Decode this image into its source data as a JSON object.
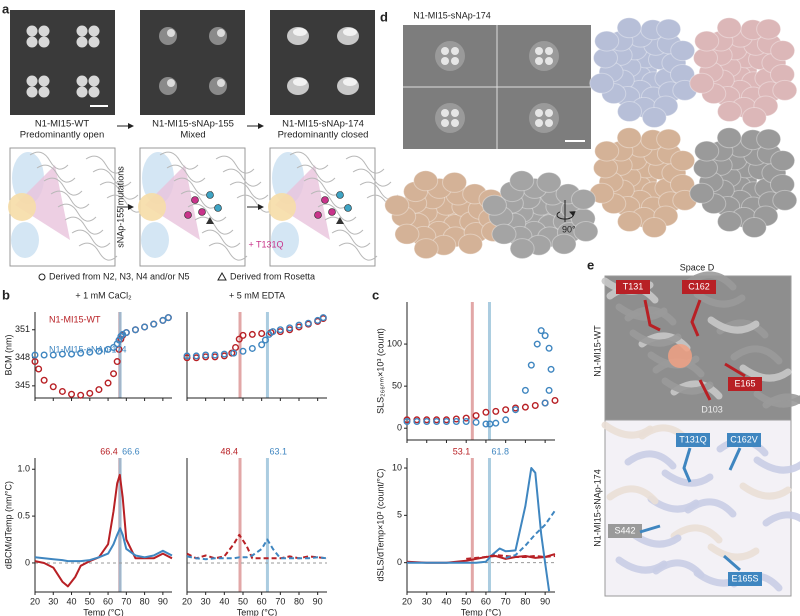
{
  "panel_a": {
    "label": "a",
    "classes": [
      {
        "name": "N1-MI15-WT",
        "state": "Predominantly open"
      },
      {
        "name": "N1-MI15-sNAp-155",
        "state": "Mixed"
      },
      {
        "name": "N1-MI15-sNAp-174",
        "state": "Predominantly closed"
      }
    ],
    "side_label": "sNAp-155 mutations",
    "mutation": "+ T131Q",
    "legend": [
      "Derived from N2, N3, N4 and/or N5",
      "Derived from Rosetta"
    ]
  },
  "panel_b": {
    "label": "b"
  },
  "panel_c": {
    "label": "c"
  },
  "panel_d": {
    "label": "d",
    "title": "N1-MI15-sNAp-174",
    "rotation": "90°"
  },
  "panel_e": {
    "label": "e",
    "title": "Space D",
    "structures": [
      {
        "name": "N1-MI15-WT",
        "residues": [
          "T131",
          "C162",
          "E165",
          "D103"
        ]
      },
      {
        "name": "N1-MI15-sNAp-174",
        "residues": [
          "T131Q",
          "C162V",
          "S442",
          "E165S"
        ]
      }
    ]
  },
  "chart_data": [
    {
      "type": "scatter",
      "annotation": "+ 1 mM CaCl₂",
      "ylabel": "BCM (nm)",
      "xlim": [
        20,
        95
      ],
      "ylim": [
        343.7,
        352.9
      ],
      "xticks": [
        20,
        30,
        40,
        50,
        60,
        70,
        80,
        90
      ],
      "yticks": [
        345,
        348,
        351
      ],
      "vlines": [
        {
          "value": 66.4,
          "color": "#d98a8a"
        },
        {
          "value": 66.6,
          "color": "#8fbcd6"
        }
      ],
      "series": [
        {
          "name": "N1-MI15-WT",
          "color": "#b82025",
          "x": [
            20,
            22,
            25,
            30,
            35,
            40,
            45,
            50,
            55,
            60,
            63,
            65,
            66,
            67,
            68,
            70,
            75,
            80,
            85,
            90,
            93
          ],
          "values": [
            347.6,
            346.8,
            345.6,
            344.9,
            344.4,
            344.1,
            344.0,
            344.2,
            344.6,
            345.3,
            346.3,
            347.6,
            348.9,
            350.0,
            350.4,
            350.7,
            351.0,
            351.3,
            351.6,
            352.0,
            352.3
          ]
        },
        {
          "name": "N1-MI15-sNAp-174",
          "color": "#3f86c0",
          "x": [
            20,
            25,
            30,
            35,
            40,
            45,
            50,
            55,
            60,
            63,
            65,
            66,
            67,
            68,
            70,
            75,
            80,
            85,
            90,
            93
          ],
          "values": [
            348.3,
            348.3,
            348.3,
            348.4,
            348.4,
            348.5,
            348.6,
            348.7,
            348.9,
            349.1,
            349.5,
            349.9,
            350.3,
            350.5,
            350.7,
            351.0,
            351.3,
            351.6,
            352.0,
            352.3
          ]
        }
      ]
    },
    {
      "type": "scatter",
      "annotation": "+ 5 mM EDTA",
      "xlim": [
        20,
        95
      ],
      "ylim": [
        343.7,
        352.9
      ],
      "xticks": [
        20,
        30,
        40,
        50,
        60,
        70,
        80,
        90
      ],
      "vlines": [
        {
          "value": 48.4,
          "color": "#d98a8a"
        },
        {
          "value": 63.1,
          "color": "#8fbcd6"
        }
      ],
      "series": [
        {
          "color": "#b82025",
          "x": [
            20,
            25,
            30,
            35,
            40,
            44,
            46,
            48,
            50,
            55,
            60,
            65,
            70,
            75,
            80,
            85,
            90,
            93
          ],
          "values": [
            348.0,
            348.0,
            348.1,
            348.1,
            348.2,
            348.5,
            349.1,
            350.0,
            350.4,
            350.5,
            350.6,
            350.7,
            350.8,
            351.0,
            351.3,
            351.6,
            351.9,
            352.2
          ]
        },
        {
          "color": "#3f86c0",
          "x": [
            20,
            25,
            30,
            35,
            40,
            45,
            50,
            55,
            60,
            62,
            64,
            66,
            70,
            75,
            80,
            85,
            90,
            93
          ],
          "values": [
            348.2,
            348.2,
            348.3,
            348.3,
            348.4,
            348.5,
            348.7,
            349.0,
            349.4,
            349.9,
            350.5,
            350.8,
            351.0,
            351.2,
            351.5,
            351.7,
            352.0,
            352.3
          ]
        }
      ]
    },
    {
      "type": "line",
      "ylabel": "dBCM/dTemp (nm/°C)",
      "xlabel": "Temp (°C)",
      "xlim": [
        20,
        95
      ],
      "ylim": [
        -0.31,
        1.12
      ],
      "xticks": [
        20,
        30,
        40,
        50,
        60,
        70,
        80,
        90
      ],
      "yticks": [
        0,
        0.5,
        {
          "value": 1,
          "label": "1.0"
        }
      ],
      "reference_line": 0,
      "vline_labels": true,
      "vlines": [
        {
          "value": 66.4,
          "color": "#d98a8a"
        },
        {
          "value": 66.6,
          "color": "#8fbcd6"
        }
      ],
      "series": [
        {
          "color": "#b82025",
          "x": [
            20,
            25,
            30,
            35,
            38,
            42,
            45,
            50,
            55,
            60,
            63,
            65,
            66.4,
            68,
            70,
            75,
            80,
            85,
            90,
            95
          ],
          "values": [
            0.02,
            0.0,
            -0.05,
            -0.2,
            -0.25,
            -0.15,
            -0.03,
            0.02,
            0.06,
            0.2,
            0.55,
            0.85,
            0.94,
            0.7,
            0.25,
            0.05,
            0.05,
            0.05,
            0.1,
            0.05
          ]
        },
        {
          "color": "#3f86c0",
          "x": [
            20,
            25,
            30,
            35,
            38,
            42,
            45,
            50,
            55,
            60,
            63,
            65,
            66.6,
            68,
            70,
            75,
            80,
            85,
            90,
            95
          ],
          "values": [
            0.06,
            0.05,
            0.04,
            0.03,
            0.02,
            0.02,
            0.02,
            0.03,
            0.06,
            0.1,
            0.2,
            0.3,
            0.37,
            0.3,
            0.15,
            0.08,
            0.06,
            0.08,
            0.13,
            0.08
          ]
        }
      ]
    },
    {
      "type": "line",
      "xlabel": "Temp (°C)",
      "xlim": [
        20,
        95
      ],
      "ylim": [
        -0.31,
        1.12
      ],
      "xticks": [
        20,
        30,
        40,
        50,
        60,
        70,
        80,
        90
      ],
      "reference_line": 0,
      "vline_labels": true,
      "vlines": [
        {
          "value": 48.4,
          "color": "#d98a8a"
        },
        {
          "value": 63.1,
          "color": "#8fbcd6"
        }
      ],
      "series": [
        {
          "color": "#b82025",
          "dashed": true,
          "x": [
            20,
            25,
            30,
            35,
            40,
            45,
            48,
            52,
            55,
            60,
            63,
            66,
            70,
            75,
            80,
            85,
            90,
            95
          ],
          "values": [
            0.1,
            0.05,
            0.08,
            0.05,
            0.07,
            0.2,
            0.3,
            0.18,
            0.05,
            0.05,
            0.05,
            0.05,
            0.05,
            0.07,
            0.05,
            0.07,
            0.06,
            0.05
          ]
        },
        {
          "color": "#3f86c0",
          "dashed": true,
          "x": [
            20,
            25,
            30,
            35,
            40,
            45,
            48,
            52,
            55,
            60,
            63,
            66,
            70,
            75,
            80,
            85,
            90,
            95
          ],
          "values": [
            0.07,
            0.05,
            0.04,
            0.05,
            0.05,
            0.05,
            0.06,
            0.06,
            0.08,
            0.15,
            0.25,
            0.15,
            0.05,
            0.05,
            0.05,
            0.05,
            0.06,
            0.05
          ]
        }
      ]
    },
    {
      "type": "scatter",
      "ylabel": "SLS₂₆₆ₙₘ×10³ (count)",
      "xlim": [
        20,
        95
      ],
      "ylim": [
        -14,
        150
      ],
      "xticks": [
        20,
        30,
        40,
        50,
        60,
        70,
        80,
        90
      ],
      "yticks": [
        0,
        50,
        100
      ],
      "vlines": [
        {
          "value": 53.1,
          "color": "#d98a8a"
        },
        {
          "value": 61.8,
          "color": "#8fbcd6"
        }
      ],
      "series": [
        {
          "color": "#b82025",
          "x": [
            20,
            25,
            30,
            35,
            40,
            45,
            50,
            55,
            60,
            65,
            70,
            75,
            80,
            85,
            90,
            95
          ],
          "values": [
            10,
            10,
            10,
            10,
            10,
            11,
            12,
            15,
            19,
            20,
            22,
            24,
            25,
            27,
            30,
            33
          ]
        },
        {
          "color": "#3f86c0",
          "x": [
            20,
            25,
            30,
            35,
            40,
            45,
            50,
            55,
            60,
            62,
            65,
            70,
            75,
            80,
            83,
            86,
            88,
            90,
            92,
            93,
            92,
            90
          ],
          "values": [
            8,
            8,
            8,
            8,
            8,
            8,
            8,
            7,
            5,
            5,
            6,
            10,
            22,
            45,
            75,
            100,
            116,
            110,
            95,
            70,
            45,
            30
          ]
        }
      ]
    },
    {
      "type": "line",
      "ylabel": "dSLS/dTemp×10³ (count/°C)",
      "xlabel": "Temp (°C)",
      "xlim": [
        20,
        95
      ],
      "ylim": [
        -3.1,
        11.06
      ],
      "xticks": [
        20,
        30,
        40,
        50,
        60,
        70,
        80,
        90
      ],
      "yticks": [
        0,
        5,
        10
      ],
      "reference_line": 0,
      "vline_labels": true,
      "vlines": [
        {
          "value": 53.1,
          "color": "#d98a8a"
        },
        {
          "value": 61.8,
          "color": "#8fbcd6"
        }
      ],
      "series": [
        {
          "color": "#b82025",
          "x": [
            20,
            30,
            40,
            50,
            55,
            60,
            65,
            70,
            75,
            80,
            85,
            90,
            95
          ],
          "values": [
            0.1,
            0,
            0,
            0.2,
            0.4,
            0.6,
            0.7,
            0.4,
            0.6,
            0.7,
            0.5,
            0.6,
            0.9
          ]
        },
        {
          "color": "#3f86c0",
          "x": [
            20,
            30,
            40,
            50,
            55,
            60,
            63,
            67,
            70,
            75,
            80,
            83,
            85,
            88,
            90,
            92
          ],
          "values": [
            0,
            0,
            0,
            0,
            0,
            0.1,
            0.8,
            1.5,
            1.2,
            1.3,
            6,
            10,
            9.5,
            3,
            0,
            -3
          ]
        },
        {
          "color": "#b82025",
          "dashed": true,
          "x": [
            50,
            55,
            60,
            65,
            70,
            75,
            80,
            85,
            90,
            95
          ],
          "values": [
            0.4,
            0.5,
            0.6,
            0.8,
            0.7,
            0.6,
            0.6,
            0.7,
            0.6,
            0.7
          ]
        },
        {
          "color": "#3f86c0",
          "dashed": true,
          "x": [
            70,
            75,
            80,
            85,
            90,
            95
          ],
          "values": [
            0.5,
            0.8,
            1.8,
            3,
            4,
            5.5
          ]
        }
      ]
    }
  ]
}
